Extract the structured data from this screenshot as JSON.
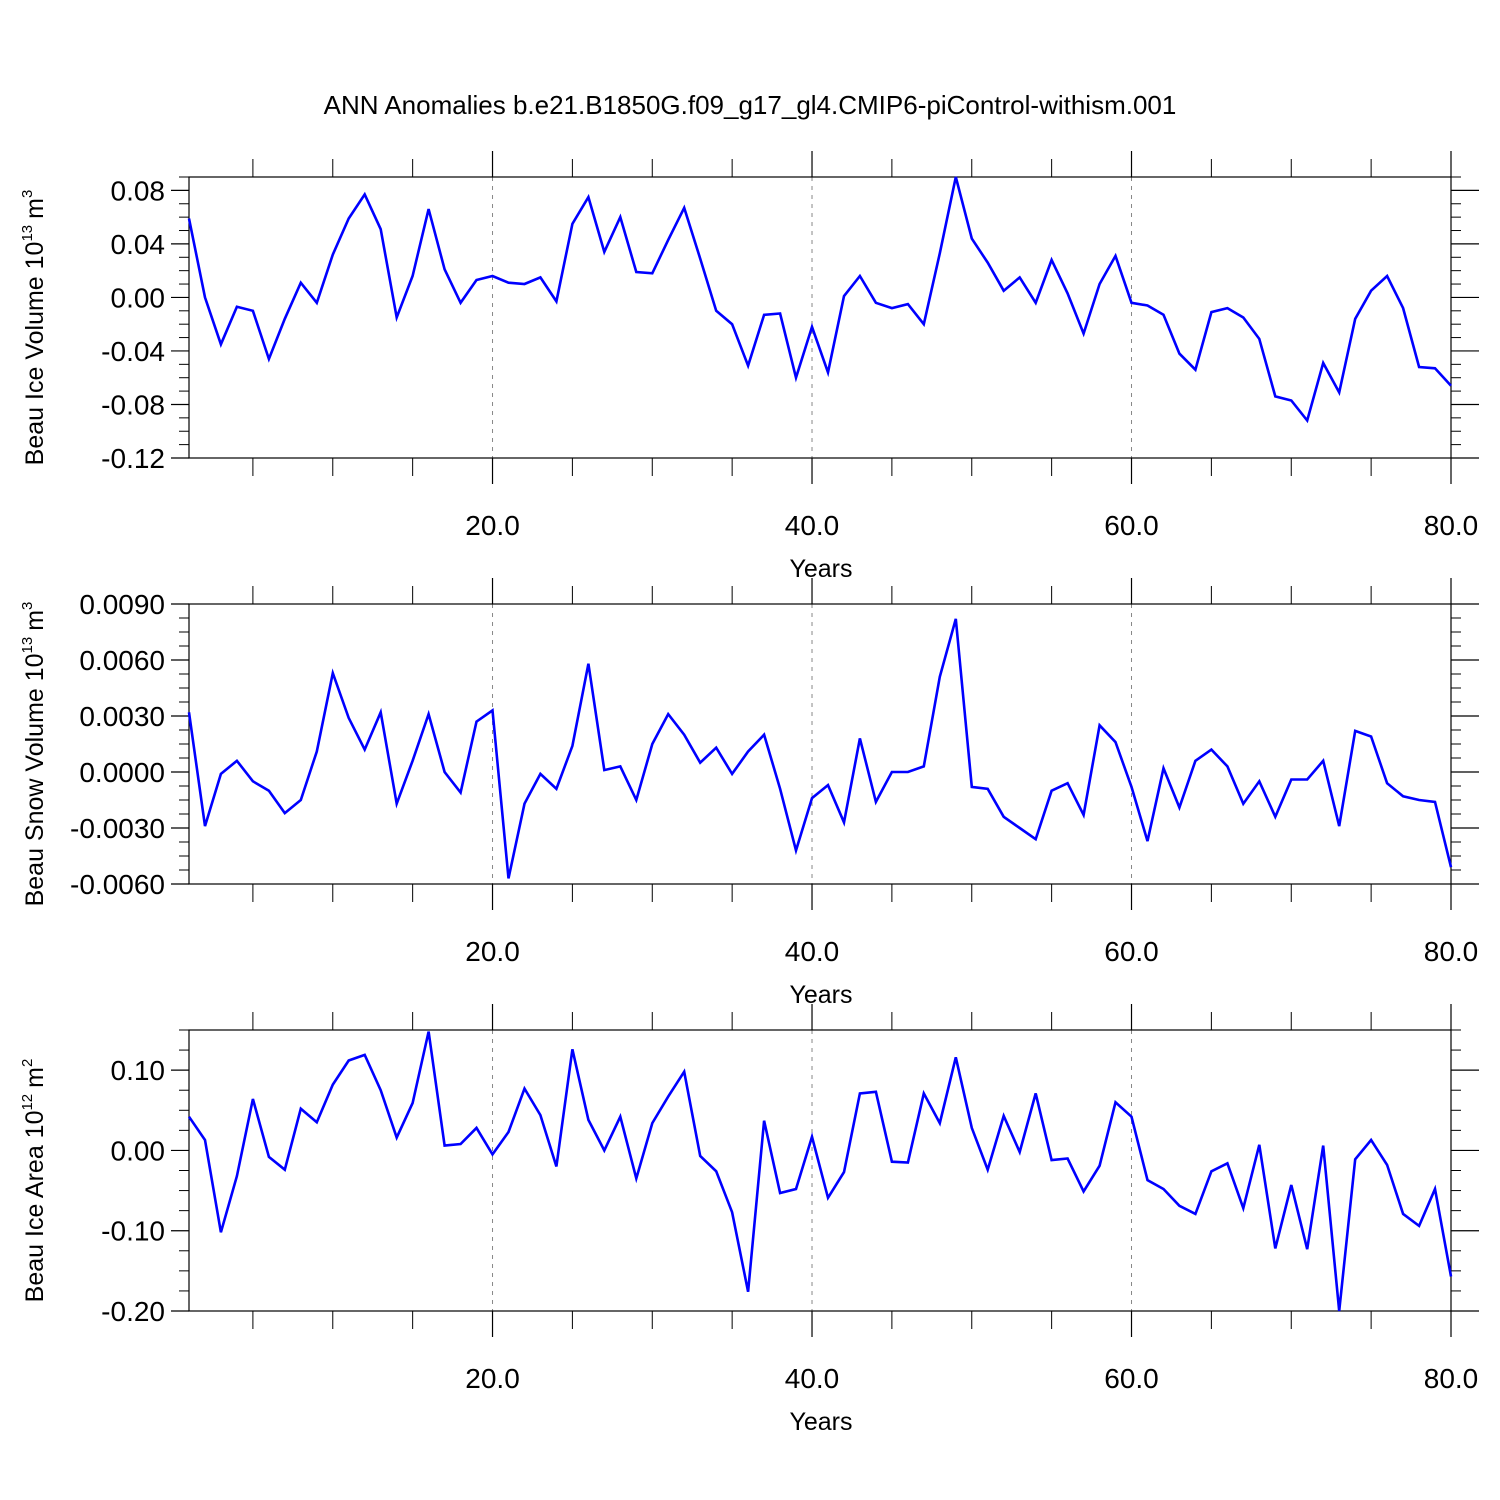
{
  "title": "ANN Anomalies b.e21.B1850G.f09_g17_gl4.CMIP6-piControl-withism.001",
  "chart_data": [
    {
      "type": "line",
      "ylabel": "Beau Ice Volume 10",
      "ylabel_sup": "13",
      "ylabel_unit": "m",
      "ylabel_unit_sup": "3",
      "xlabel": "Years",
      "xlim": [
        1,
        80
      ],
      "ylim": [
        -0.12,
        0.09
      ],
      "yticks": [
        -0.12,
        -0.08,
        -0.04,
        0.0,
        0.04,
        0.08
      ],
      "ytick_labels": [
        "-0.12",
        "-0.08",
        "-0.04",
        "0.00",
        "0.04",
        "0.08"
      ],
      "ytick_minor_step": 0.01,
      "xticks": [
        20,
        40,
        60,
        80
      ],
      "xtick_labels": [
        "20.0",
        "40.0",
        "60.0",
        "80.0"
      ],
      "grid": "vertical dashed at major x ticks",
      "series": [
        {
          "color": "#0000ff",
          "x": [
            1,
            2,
            3,
            4,
            5,
            6,
            7,
            8,
            9,
            10,
            11,
            12,
            13,
            14,
            15,
            16,
            17,
            18,
            19,
            20,
            21,
            22,
            23,
            24,
            25,
            26,
            27,
            28,
            29,
            30,
            31,
            32,
            33,
            34,
            35,
            36,
            37,
            38,
            39,
            40,
            41,
            42,
            43,
            44,
            45,
            46,
            47,
            48,
            49,
            50,
            51,
            52,
            53,
            54,
            55,
            56,
            57,
            58,
            59,
            60,
            61,
            62,
            63,
            64,
            65,
            66,
            67,
            68,
            69,
            70,
            71,
            72,
            73,
            74,
            75,
            76,
            77,
            78,
            79,
            80
          ],
          "values": [
            0.059,
            0.0,
            -0.035,
            -0.007,
            -0.01,
            -0.046,
            -0.016,
            0.011,
            -0.004,
            0.032,
            0.059,
            0.077,
            0.051,
            -0.015,
            0.016,
            0.066,
            0.021,
            -0.004,
            0.013,
            0.016,
            0.011,
            0.01,
            0.015,
            -0.003,
            0.055,
            0.075,
            0.034,
            0.06,
            0.019,
            0.018,
            0.043,
            0.067,
            0.029,
            -0.01,
            -0.02,
            -0.051,
            -0.013,
            -0.012,
            -0.06,
            -0.022,
            -0.056,
            0.001,
            0.016,
            -0.004,
            -0.008,
            -0.005,
            -0.02,
            0.033,
            0.09,
            0.044,
            0.026,
            0.005,
            0.015,
            -0.004,
            0.028,
            0.003,
            -0.027,
            0.01,
            0.031,
            -0.004,
            -0.006,
            -0.013,
            -0.042,
            -0.054,
            -0.011,
            -0.008,
            -0.015,
            -0.031,
            -0.074,
            -0.077,
            -0.092,
            -0.049,
            -0.071,
            -0.016,
            0.005,
            0.016,
            -0.008,
            -0.052,
            -0.053,
            -0.066
          ]
        }
      ]
    },
    {
      "type": "line",
      "ylabel": "Beau Snow Volume 10",
      "ylabel_sup": "13",
      "ylabel_unit": "m",
      "ylabel_unit_sup": "3",
      "xlabel": "Years",
      "xlim": [
        1,
        80
      ],
      "ylim": [
        -0.006,
        0.009
      ],
      "yticks": [
        -0.006,
        -0.003,
        0.0,
        0.003,
        0.006,
        0.009
      ],
      "ytick_labels": [
        "-0.0060",
        "-0.0030",
        "0.0000",
        "0.0030",
        "0.0060",
        "0.0090"
      ],
      "ytick_minor_step": 0.00075,
      "xticks": [
        20,
        40,
        60,
        80
      ],
      "xtick_labels": [
        "20.0",
        "40.0",
        "60.0",
        "80.0"
      ],
      "grid": "vertical dashed at major x ticks",
      "series": [
        {
          "color": "#0000ff",
          "x": [
            1,
            2,
            3,
            4,
            5,
            6,
            7,
            8,
            9,
            10,
            11,
            12,
            13,
            14,
            15,
            16,
            17,
            18,
            19,
            20,
            21,
            22,
            23,
            24,
            25,
            26,
            27,
            28,
            29,
            30,
            31,
            32,
            33,
            34,
            35,
            36,
            37,
            38,
            39,
            40,
            41,
            42,
            43,
            44,
            45,
            46,
            47,
            48,
            49,
            50,
            51,
            52,
            53,
            54,
            55,
            56,
            57,
            58,
            59,
            60,
            61,
            62,
            63,
            64,
            65,
            66,
            67,
            68,
            69,
            70,
            71,
            72,
            73,
            74,
            75,
            76,
            77,
            78,
            79,
            80
          ],
          "values": [
            0.0032,
            -0.0029,
            -0.0001,
            0.0006,
            -0.0005,
            -0.001,
            -0.0022,
            -0.0015,
            0.0011,
            0.0053,
            0.0029,
            0.0012,
            0.0032,
            -0.0017,
            0.0006,
            0.0031,
            0.0,
            -0.0011,
            0.0027,
            0.0033,
            -0.0057,
            -0.0017,
            -0.0001,
            -0.0009,
            0.0014,
            0.0058,
            0.0001,
            0.0003,
            -0.0015,
            0.0015,
            0.0031,
            0.002,
            0.0005,
            0.0013,
            -0.0001,
            0.0011,
            0.002,
            -0.0009,
            -0.0042,
            -0.0014,
            -0.0007,
            -0.0027,
            0.0018,
            -0.0016,
            0.0,
            0.0,
            0.0003,
            0.0051,
            0.0082,
            -0.0008,
            -0.0009,
            -0.0024,
            -0.003,
            -0.0036,
            -0.001,
            -0.0006,
            -0.0023,
            0.0025,
            0.0016,
            -0.0008,
            -0.0037,
            0.0002,
            -0.0019,
            0.0006,
            0.0012,
            0.0003,
            -0.0017,
            -0.0005,
            -0.0024,
            -0.0004,
            -0.0004,
            0.0006,
            -0.0029,
            0.0022,
            0.0019,
            -0.0006,
            -0.0013,
            -0.0015,
            -0.0016,
            -0.0051
          ]
        }
      ]
    },
    {
      "type": "line",
      "ylabel": "Beau Ice Area 10",
      "ylabel_sup": "12",
      "ylabel_unit": "m",
      "ylabel_unit_sup": "2",
      "xlabel": "Years",
      "xlim": [
        1,
        80
      ],
      "ylim": [
        -0.2,
        0.15
      ],
      "yticks": [
        -0.2,
        -0.1,
        0.0,
        0.1
      ],
      "ytick_labels": [
        "-0.20",
        "-0.10",
        "0.00",
        "0.10"
      ],
      "ytick_minor_step": 0.025,
      "xticks": [
        20,
        40,
        60,
        80
      ],
      "xtick_labels": [
        "20.0",
        "40.0",
        "60.0",
        "80.0"
      ],
      "grid": "vertical dashed at major x ticks",
      "series": [
        {
          "color": "#0000ff",
          "x": [
            1,
            2,
            3,
            4,
            5,
            6,
            7,
            8,
            9,
            10,
            11,
            12,
            13,
            14,
            15,
            16,
            17,
            18,
            19,
            20,
            21,
            22,
            23,
            24,
            25,
            26,
            27,
            28,
            29,
            30,
            31,
            32,
            33,
            34,
            35,
            36,
            37,
            38,
            39,
            40,
            41,
            42,
            43,
            44,
            45,
            46,
            47,
            48,
            49,
            50,
            51,
            52,
            53,
            54,
            55,
            56,
            57,
            58,
            59,
            60,
            61,
            62,
            63,
            64,
            65,
            66,
            67,
            68,
            69,
            70,
            71,
            72,
            73,
            74,
            75,
            76,
            77,
            78,
            79,
            80
          ],
          "values": [
            0.042,
            0.013,
            -0.102,
            -0.032,
            0.064,
            -0.008,
            -0.024,
            0.052,
            0.035,
            0.082,
            0.112,
            0.119,
            0.075,
            0.016,
            0.059,
            0.148,
            0.006,
            0.008,
            0.028,
            -0.005,
            0.023,
            0.077,
            0.044,
            -0.02,
            0.126,
            0.038,
            0.0,
            0.042,
            -0.035,
            0.034,
            0.067,
            0.098,
            -0.007,
            -0.026,
            -0.077,
            -0.176,
            0.037,
            -0.053,
            -0.048,
            0.017,
            -0.059,
            -0.027,
            0.071,
            0.073,
            -0.014,
            -0.015,
            0.071,
            0.034,
            0.116,
            0.028,
            -0.024,
            0.043,
            -0.002,
            0.071,
            -0.012,
            -0.01,
            -0.051,
            -0.019,
            0.06,
            0.042,
            -0.037,
            -0.048,
            -0.069,
            -0.079,
            -0.026,
            -0.016,
            -0.072,
            0.007,
            -0.122,
            -0.043,
            -0.123,
            0.006,
            -0.2,
            -0.011,
            0.013,
            -0.018,
            -0.079,
            -0.094,
            -0.048,
            -0.157
          ]
        }
      ]
    }
  ]
}
